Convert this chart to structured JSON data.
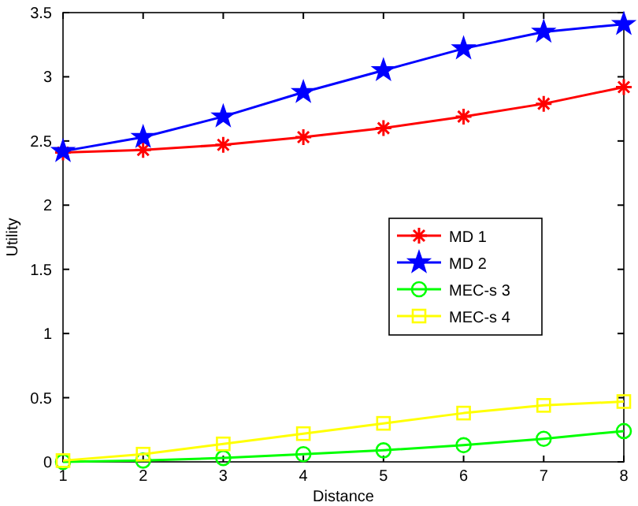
{
  "chart_data": {
    "type": "line",
    "xlabel": "Distance",
    "ylabel": "Utility",
    "x": [
      1,
      2,
      3,
      4,
      5,
      6,
      7,
      8
    ],
    "xlim": [
      1,
      8
    ],
    "xticks": [
      1,
      2,
      3,
      4,
      5,
      6,
      7,
      8
    ],
    "ylim": [
      0,
      3.5
    ],
    "yticks": [
      0,
      0.5,
      1,
      1.5,
      2,
      2.5,
      3,
      3.5
    ],
    "legend": "right",
    "grid": false,
    "line_style": "solid",
    "series": [
      {
        "name": "MD 1",
        "color": "#ff0000",
        "marker": "cross",
        "values": [
          2.41,
          2.43,
          2.47,
          2.53,
          2.6,
          2.69,
          2.79,
          2.92
        ]
      },
      {
        "name": "MD 2",
        "color": "#0000ff",
        "marker": "star",
        "values": [
          2.42,
          2.53,
          2.69,
          2.88,
          3.05,
          3.22,
          3.35,
          3.41
        ]
      },
      {
        "name": "MEC-s 3",
        "color": "#00ff00",
        "marker": "circle",
        "values": [
          0,
          0.01,
          0.03,
          0.06,
          0.09,
          0.13,
          0.18,
          0.24
        ]
      },
      {
        "name": "MEC-s 4",
        "color": "#ffff00",
        "marker": "square",
        "values": [
          0.01,
          0.06,
          0.14,
          0.22,
          0.3,
          0.38,
          0.44,
          0.47
        ]
      }
    ]
  }
}
